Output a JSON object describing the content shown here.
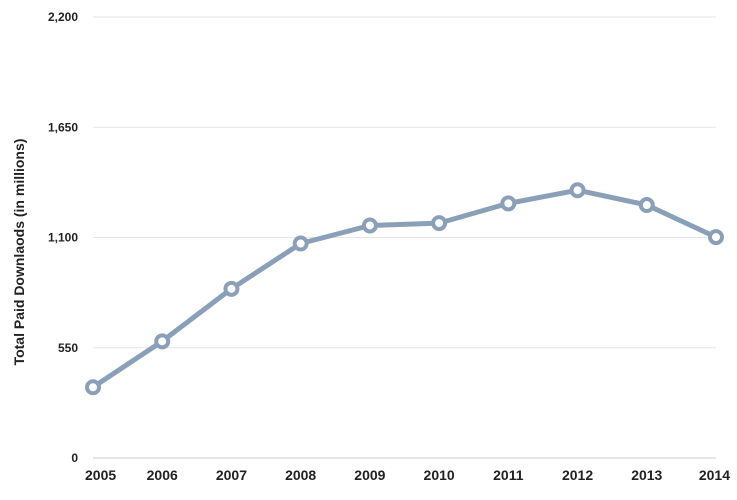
{
  "chart_data": {
    "type": "line",
    "title": "",
    "xlabel": "",
    "ylabel": "Total Paid Downlaods (in millions)",
    "x": [
      "2005",
      "2006",
      "2007",
      "2008",
      "2009",
      "2010",
      "2011",
      "2012",
      "2013",
      "2014"
    ],
    "series": [
      {
        "name": "",
        "values": [
          353,
          582,
          844,
          1070,
          1160,
          1172,
          1270,
          1336,
          1262,
          1102
        ]
      }
    ],
    "ylim": [
      0,
      2200
    ],
    "yticks": [
      0,
      550,
      1100,
      1650,
      2200
    ],
    "ytick_labels": [
      "0",
      "550",
      "1,100",
      "1,650",
      "2,200"
    ],
    "grid": true,
    "legend": "none",
    "colors": {
      "line": "#8aa0b8",
      "marker_fill": "#ffffff",
      "grid": "#e6e6e6"
    }
  }
}
